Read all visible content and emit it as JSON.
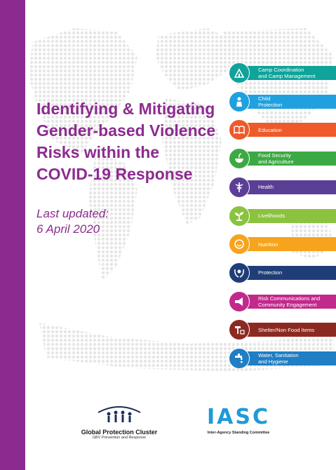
{
  "cover": {
    "title_lines": [
      "Identifying & Mitigating",
      "Gender-based Violence",
      "Risks within the",
      "COVID-19 Response"
    ],
    "updated_label": "Last updated:",
    "updated_date": "6 April 2020",
    "accent_color": "#8c2b8f"
  },
  "clusters": [
    {
      "line1": "Camp Coordination",
      "line2": "and Camp Management",
      "color": "#0fa39a",
      "icon": "camp-icon"
    },
    {
      "line1": "Child",
      "line2": "Protection",
      "color": "#1fa1e0",
      "icon": "child-icon"
    },
    {
      "line1": "Education",
      "line2": "",
      "color": "#ee5a2a",
      "icon": "book-icon"
    },
    {
      "line1": "Food Security",
      "line2": "and Agriculture",
      "color": "#3da944",
      "icon": "bowl-icon"
    },
    {
      "line1": "Health",
      "line2": "",
      "color": "#5b3f97",
      "icon": "caduceus-icon"
    },
    {
      "line1": "Livelihoods",
      "line2": "",
      "color": "#8bc340",
      "icon": "seedling-icon"
    },
    {
      "line1": "Nutrition",
      "line2": "",
      "color": "#f6a41d",
      "icon": "face-icon"
    },
    {
      "line1": "Protection",
      "line2": "",
      "color": "#1f3e78",
      "icon": "hands-icon"
    },
    {
      "line1": "Risk Communications and",
      "line2": "Community Engagement",
      "color": "#c1298c",
      "icon": "megaphone-icon"
    },
    {
      "line1": "Shelter/Non Food Items",
      "line2": "",
      "color": "#8c2a22",
      "icon": "hammer-icon"
    },
    {
      "line1": "Water, Sanitation",
      "line2": "and Hygiene",
      "color": "#1f7ec4",
      "icon": "tap-icon"
    }
  ],
  "footer": {
    "gpc_name": "Global Protection Cluster",
    "gpc_sub": "GBV Prevention and Response",
    "iasc_logo": "IASC",
    "iasc_sub": "Inter-Agency Standing Committee"
  }
}
